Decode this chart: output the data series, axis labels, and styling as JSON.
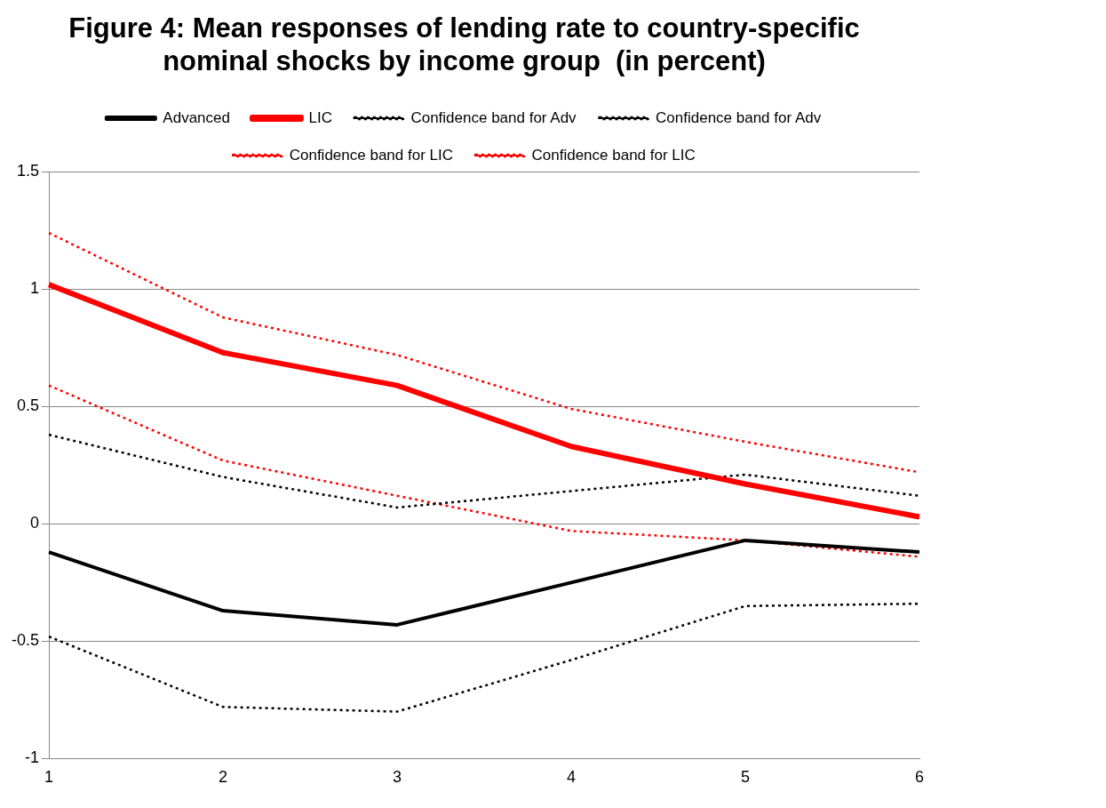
{
  "chart_data": {
    "type": "line",
    "title": "Figure 4: Mean responses of lending rate to country-specific nominal shocks by income group  (in percent)",
    "categories": [
      "1",
      "2",
      "3",
      "4",
      "5",
      "6"
    ],
    "series": [
      {
        "name": "Advanced",
        "color": "#000000",
        "line_style": "solid",
        "values": [
          -0.12,
          -0.37,
          -0.43,
          -0.25,
          -0.07,
          -0.12
        ]
      },
      {
        "name": "LIC",
        "color": "#ff0000",
        "line_style": "solid",
        "values": [
          1.02,
          0.73,
          0.59,
          0.33,
          0.17,
          0.03
        ]
      },
      {
        "name": "Confidence band for Adv",
        "color": "#000000",
        "line_style": "dotted",
        "values": [
          0.38,
          0.2,
          0.07,
          0.14,
          0.21,
          0.12
        ]
      },
      {
        "name": "Confidence band for Adv",
        "color": "#000000",
        "line_style": "dotted",
        "values": [
          -0.48,
          -0.78,
          -0.8,
          -0.58,
          -0.35,
          -0.34
        ]
      },
      {
        "name": "Confidence band for LIC",
        "color": "#ff0000",
        "line_style": "dotted",
        "values": [
          1.24,
          0.88,
          0.72,
          0.49,
          0.35,
          0.22
        ]
      },
      {
        "name": "Confidence band for LIC",
        "color": "#ff0000",
        "line_style": "dotted",
        "values": [
          0.59,
          0.27,
          0.12,
          -0.03,
          -0.07,
          -0.14
        ]
      }
    ],
    "ylim": [
      -1,
      1.5
    ],
    "yticks": [
      -1,
      -0.5,
      0,
      0.5,
      1,
      1.5
    ],
    "grid": "y",
    "legend": "top",
    "marker": "none"
  }
}
